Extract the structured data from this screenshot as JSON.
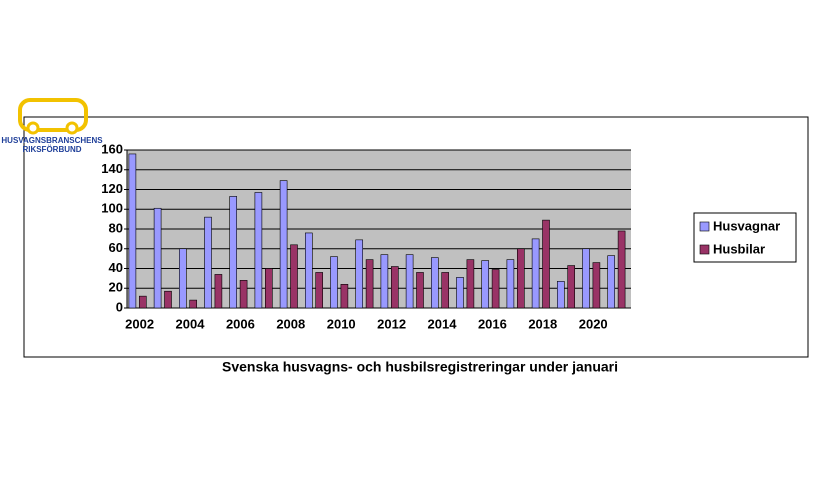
{
  "logo": {
    "lines": [
      "HUSVAGNSBRANSCHENS",
      "RIKSFÖRBUND"
    ]
  },
  "chart_data": {
    "type": "bar",
    "title": "Svenska husvagns- och husbilsregistreringar under januari",
    "categories": [
      "2002",
      null,
      "2004",
      null,
      "2006",
      null,
      "2008",
      null,
      "2010",
      null,
      "2012",
      null,
      "2014",
      null,
      "2016",
      null,
      "2018",
      null,
      "2020",
      null
    ],
    "series": [
      {
        "name": "Husvagnar",
        "color": "#9999ff",
        "values": [
          156,
          101,
          60,
          92,
          113,
          117,
          129,
          76,
          52,
          69,
          54,
          54,
          51,
          31,
          48,
          49,
          70,
          27,
          60,
          53
        ]
      },
      {
        "name": "Husbilar",
        "color": "#993366",
        "values": [
          12,
          17,
          8,
          34,
          28,
          40,
          64,
          36,
          24,
          49,
          42,
          36,
          36,
          49,
          39,
          60,
          89,
          43,
          46,
          78
        ]
      }
    ],
    "ylim": [
      0,
      160
    ],
    "yticks": [
      0,
      20,
      40,
      60,
      80,
      100,
      120,
      140,
      160
    ],
    "grid": true,
    "legend": "right"
  }
}
